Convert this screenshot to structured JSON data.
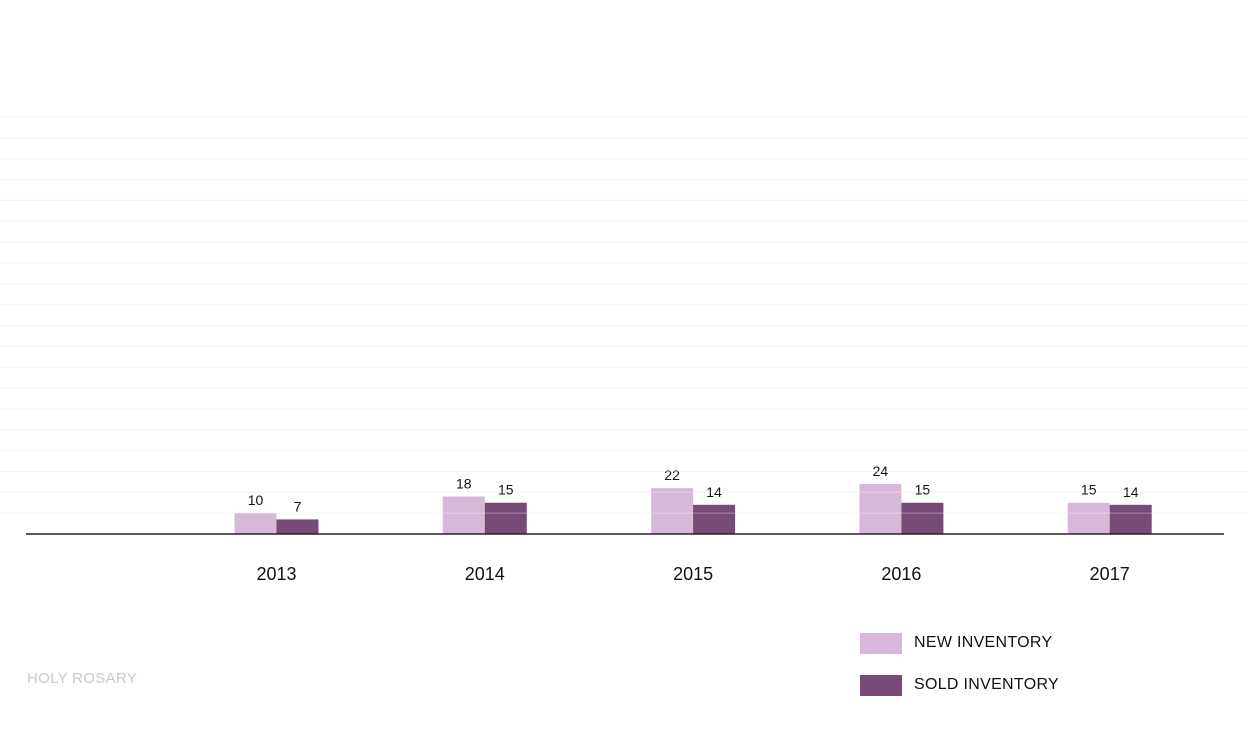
{
  "chart_data": {
    "type": "bar",
    "title": "",
    "xlabel": "",
    "ylabel": "",
    "categories": [
      "2013",
      "2014",
      "2015",
      "2016",
      "2017"
    ],
    "series": [
      {
        "name": "NEW INVENTORY",
        "values": [
          10,
          18,
          22,
          24,
          15
        ],
        "color": "#d7b8d8"
      },
      {
        "name": "SOLD INVENTORY",
        "values": [
          7,
          15,
          14,
          15,
          14
        ],
        "color": "#774a77"
      }
    ],
    "ylim": [
      0,
      200
    ],
    "grid": true,
    "legend_position": "bottom-right",
    "data_labels": true
  },
  "footer": {
    "label": "HOLY ROSARY"
  },
  "legend": {
    "items": [
      {
        "label": "NEW INVENTORY",
        "color": "#d7b8d8"
      },
      {
        "label": "SOLD INVENTORY",
        "color": "#774a77"
      }
    ]
  }
}
